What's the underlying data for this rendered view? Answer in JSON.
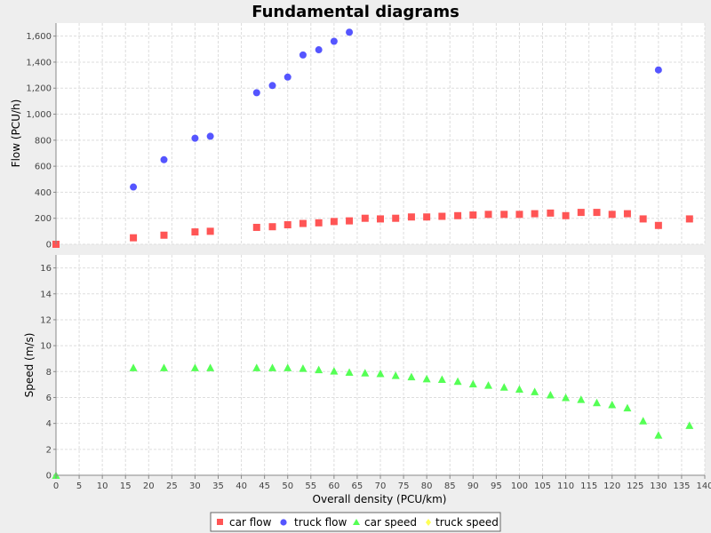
{
  "chart_data": {
    "type": "scatter",
    "title": "Fundamental diagrams",
    "xlabel": "Overall density (PCU/km)",
    "xlim": [
      0,
      140
    ],
    "x_ticks": [
      "0",
      "5",
      "10",
      "15",
      "20",
      "25",
      "30",
      "35",
      "40",
      "45",
      "50",
      "55",
      "60",
      "65",
      "70",
      "75",
      "80",
      "85",
      "90",
      "95",
      "100",
      "105",
      "110",
      "115",
      "120",
      "125",
      "130",
      "135",
      "140"
    ],
    "grid": true,
    "legend_position": "bottom",
    "panels": [
      {
        "id": "flow",
        "ylabel": "Flow (PCU/h)",
        "ylim": [
          0,
          1700
        ],
        "y_ticks": [
          "0",
          "200",
          "400",
          "600",
          "800",
          "1,000",
          "1,200",
          "1,400",
          "1,600"
        ]
      },
      {
        "id": "speed",
        "ylabel": "Speed (m/s)",
        "ylim": [
          0,
          17
        ],
        "y_ticks": [
          "0",
          "2",
          "4",
          "6",
          "8",
          "10",
          "12",
          "14",
          "16"
        ]
      }
    ],
    "series": [
      {
        "name": "car flow",
        "panel": "flow",
        "marker": "square",
        "color": "#ff5555",
        "points": [
          [
            0,
            0
          ],
          [
            16.7,
            50
          ],
          [
            23.3,
            70
          ],
          [
            30,
            95
          ],
          [
            33.3,
            100
          ],
          [
            43.3,
            130
          ],
          [
            46.7,
            135
          ],
          [
            50,
            150
          ],
          [
            53.3,
            160
          ],
          [
            56.7,
            165
          ],
          [
            60,
            175
          ],
          [
            63.3,
            180
          ],
          [
            66.7,
            200
          ],
          [
            70,
            195
          ],
          [
            73.3,
            200
          ],
          [
            76.7,
            210
          ],
          [
            80,
            210
          ],
          [
            83.3,
            215
          ],
          [
            86.7,
            220
          ],
          [
            90,
            225
          ],
          [
            93.3,
            230
          ],
          [
            96.7,
            230
          ],
          [
            100,
            230
          ],
          [
            103.3,
            235
          ],
          [
            106.7,
            240
          ],
          [
            110,
            220
          ],
          [
            113.3,
            245
          ],
          [
            116.7,
            245
          ],
          [
            120,
            230
          ],
          [
            123.3,
            235
          ],
          [
            126.7,
            195
          ],
          [
            130,
            145
          ],
          [
            136.7,
            195
          ]
        ]
      },
      {
        "name": "truck flow",
        "panel": "flow",
        "marker": "circle",
        "color": "#5555ff",
        "points": [
          [
            16.7,
            440
          ],
          [
            23.3,
            650
          ],
          [
            30,
            815
          ],
          [
            33.3,
            830
          ],
          [
            43.3,
            1165
          ],
          [
            46.7,
            1220
          ],
          [
            50,
            1285
          ],
          [
            53.3,
            1455
          ],
          [
            56.7,
            1495
          ],
          [
            60,
            1560
          ],
          [
            63.3,
            1630
          ],
          [
            130,
            1340
          ]
        ]
      },
      {
        "name": "car speed",
        "panel": "speed",
        "marker": "triangle",
        "color": "#55ff55",
        "points": [
          [
            0,
            0
          ],
          [
            16.7,
            8.3
          ],
          [
            23.3,
            8.3
          ],
          [
            30,
            8.3
          ],
          [
            33.3,
            8.3
          ],
          [
            43.3,
            8.3
          ],
          [
            46.7,
            8.3
          ],
          [
            50,
            8.3
          ],
          [
            53.3,
            8.25
          ],
          [
            56.7,
            8.15
          ],
          [
            60,
            8.05
          ],
          [
            63.3,
            7.95
          ],
          [
            66.7,
            7.9
          ],
          [
            70,
            7.85
          ],
          [
            73.3,
            7.7
          ],
          [
            76.7,
            7.6
          ],
          [
            80,
            7.45
          ],
          [
            83.3,
            7.4
          ],
          [
            86.7,
            7.25
          ],
          [
            90,
            7.05
          ],
          [
            93.3,
            6.95
          ],
          [
            96.7,
            6.8
          ],
          [
            100,
            6.65
          ],
          [
            103.3,
            6.45
          ],
          [
            106.7,
            6.2
          ],
          [
            110,
            6.0
          ],
          [
            113.3,
            5.85
          ],
          [
            116.7,
            5.6
          ],
          [
            120,
            5.45
          ],
          [
            123.3,
            5.2
          ],
          [
            126.7,
            4.2
          ],
          [
            130,
            3.1
          ],
          [
            136.7,
            3.85
          ]
        ]
      },
      {
        "name": "truck speed",
        "panel": "speed",
        "marker": "diamond",
        "color": "#ffff55",
        "points": []
      }
    ]
  }
}
